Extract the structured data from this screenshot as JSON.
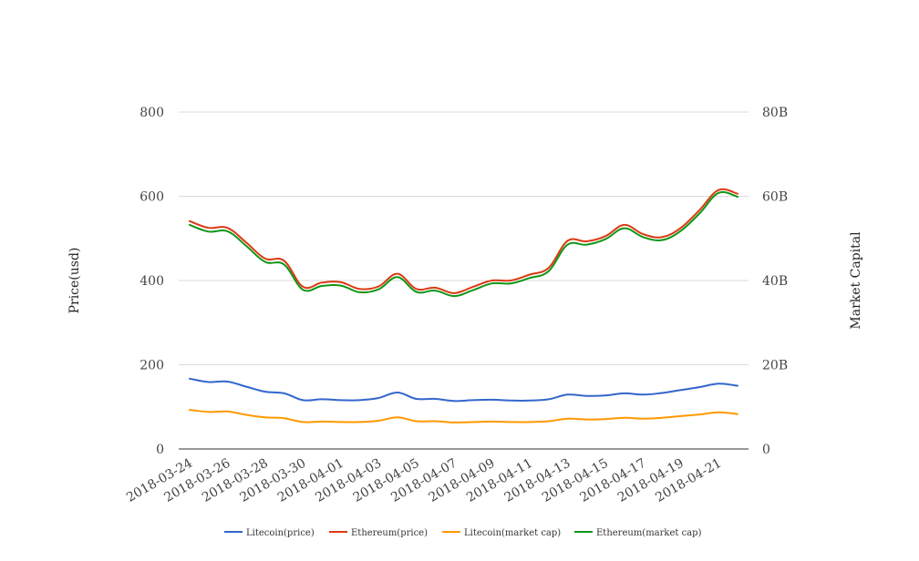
{
  "chart_data": {
    "type": "line",
    "title": "",
    "ylabel": "Price(usd)",
    "y2label": "Market Capital",
    "ylim": [
      0,
      800
    ],
    "y2lim": [
      0,
      80000000000
    ],
    "yticks": [
      "0",
      "200",
      "400",
      "600",
      "800"
    ],
    "y2ticks": [
      "0",
      "20B",
      "40B",
      "60B",
      "80B"
    ],
    "xtick_labels": [
      "2018-03-24",
      "2018-03-26",
      "2018-03-28",
      "2018-03-30",
      "2018-04-01",
      "2018-04-03",
      "2018-04-05",
      "2018-04-07",
      "2018-04-09",
      "2018-04-11",
      "2018-04-13",
      "2018-04-15",
      "2018-04-17",
      "2018-04-19",
      "2018-04-21"
    ],
    "x": [
      "2018-03-24",
      "2018-03-25",
      "2018-03-26",
      "2018-03-27",
      "2018-03-28",
      "2018-03-29",
      "2018-03-30",
      "2018-03-31",
      "2018-04-01",
      "2018-04-02",
      "2018-04-03",
      "2018-04-04",
      "2018-04-05",
      "2018-04-06",
      "2018-04-07",
      "2018-04-08",
      "2018-04-09",
      "2018-04-10",
      "2018-04-11",
      "2018-04-12",
      "2018-04-13",
      "2018-04-14",
      "2018-04-15",
      "2018-04-16",
      "2018-04-17",
      "2018-04-18",
      "2018-04-19",
      "2018-04-20",
      "2018-04-21",
      "2018-04-22"
    ],
    "grid": true,
    "legend_position": "bottom",
    "series": [
      {
        "name": "Litecoin(price)",
        "axis": "left",
        "color": "#3366cc",
        "values": [
          167,
          159,
          160,
          148,
          136,
          132,
          116,
          118,
          116,
          116,
          121,
          134,
          119,
          119,
          114,
          116,
          117,
          115,
          115,
          118,
          129,
          126,
          127,
          132,
          129,
          133,
          140,
          147,
          155,
          150
        ]
      },
      {
        "name": "Ethereum(price)",
        "axis": "left",
        "color": "#dc3912",
        "values": [
          541,
          525,
          525,
          490,
          452,
          447,
          385,
          395,
          396,
          380,
          386,
          416,
          380,
          383,
          370,
          385,
          400,
          400,
          414,
          430,
          494,
          493,
          505,
          532,
          510,
          503,
          525,
          568,
          615,
          606
        ]
      },
      {
        "name": "Litecoin(market cap)",
        "axis": "right",
        "color": "#ff9900",
        "values": [
          9300000000,
          8800000000,
          8900000000,
          8100000000,
          7500000000,
          7300000000,
          6400000000,
          6500000000,
          6400000000,
          6400000000,
          6700000000,
          7500000000,
          6600000000,
          6600000000,
          6300000000,
          6400000000,
          6500000000,
          6400000000,
          6400000000,
          6600000000,
          7200000000,
          7000000000,
          7100000000,
          7400000000,
          7200000000,
          7400000000,
          7800000000,
          8200000000,
          8700000000,
          8300000000
        ]
      },
      {
        "name": "Ethereum(market cap)",
        "axis": "right",
        "color": "#109618",
        "values": [
          53200000000,
          51600000000,
          51700000000,
          48200000000,
          44400000000,
          43800000000,
          37800000000,
          38700000000,
          38800000000,
          37200000000,
          37900000000,
          40800000000,
          37300000000,
          37600000000,
          36300000000,
          37700000000,
          39300000000,
          39300000000,
          40600000000,
          42200000000,
          48500000000,
          48500000000,
          49800000000,
          52400000000,
          50300000000,
          49600000000,
          51800000000,
          56000000000,
          60800000000,
          59900000000
        ]
      }
    ]
  }
}
